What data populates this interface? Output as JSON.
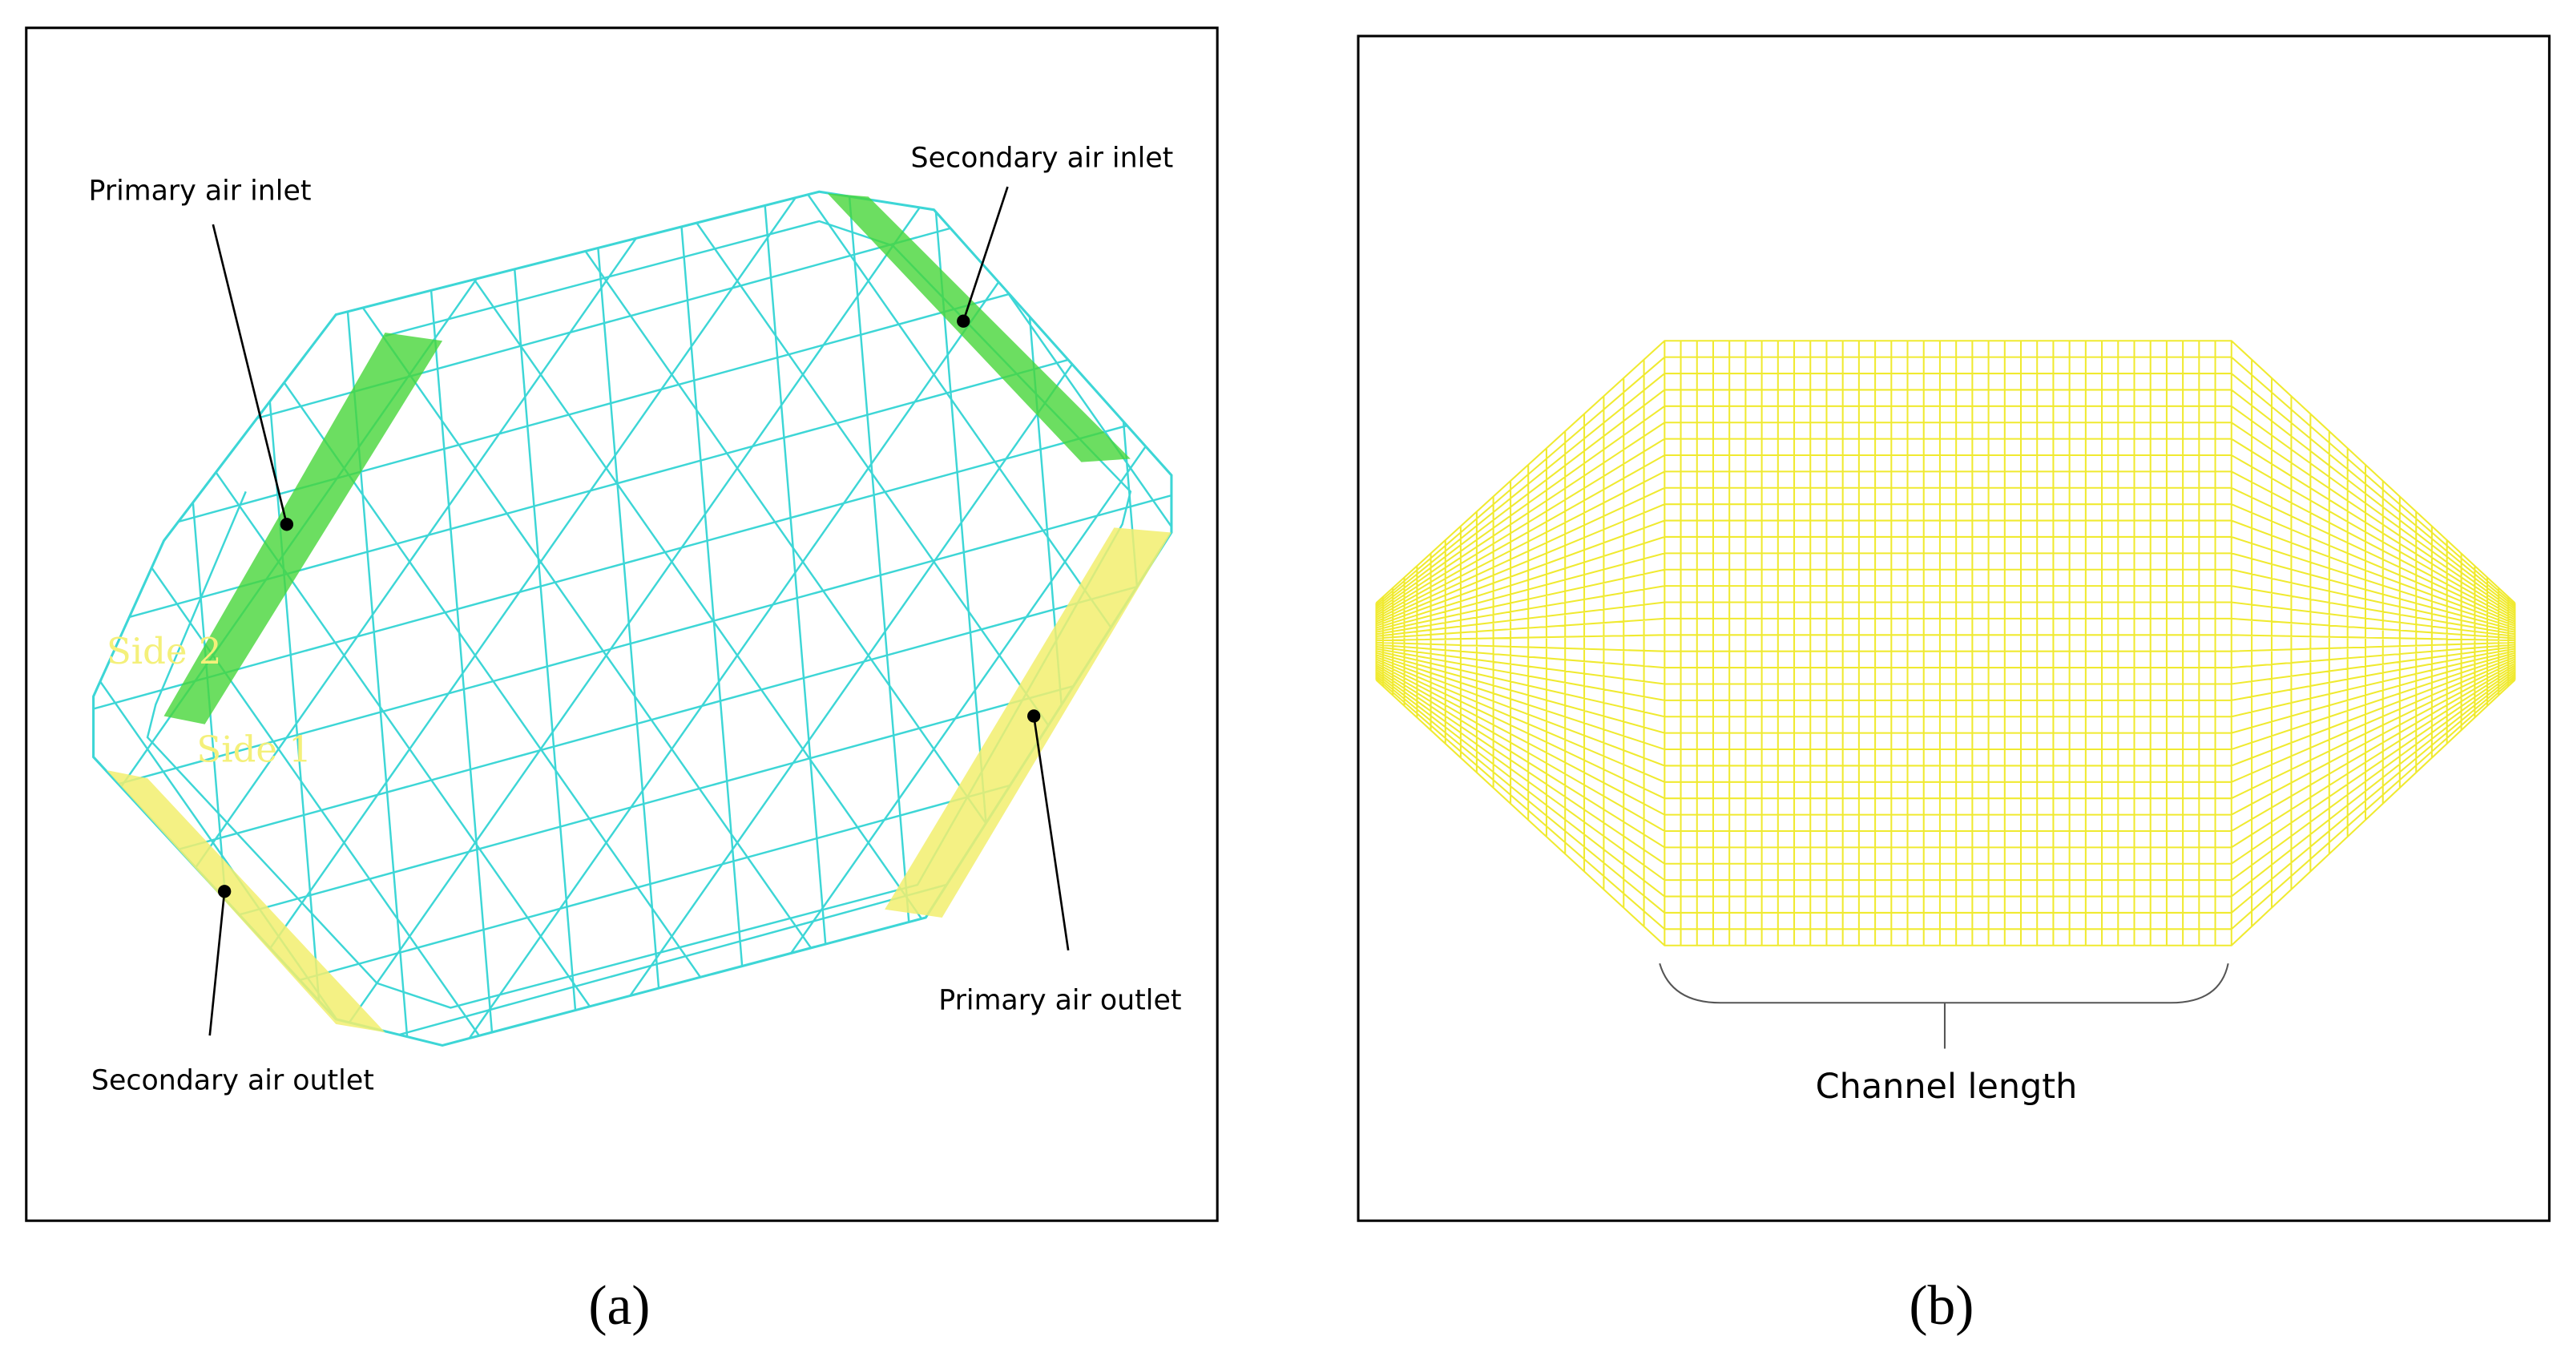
{
  "panel_a": {
    "labels": [
      "Primary air inlet",
      "Secondary air inlet",
      "Primary air outlet",
      "Secondary air outlet"
    ],
    "side_labels": [
      "Side 2",
      "Side 1"
    ],
    "caption": "(a)"
  },
  "panel_b": {
    "label": "Channel length",
    "caption": "(b)"
  }
}
